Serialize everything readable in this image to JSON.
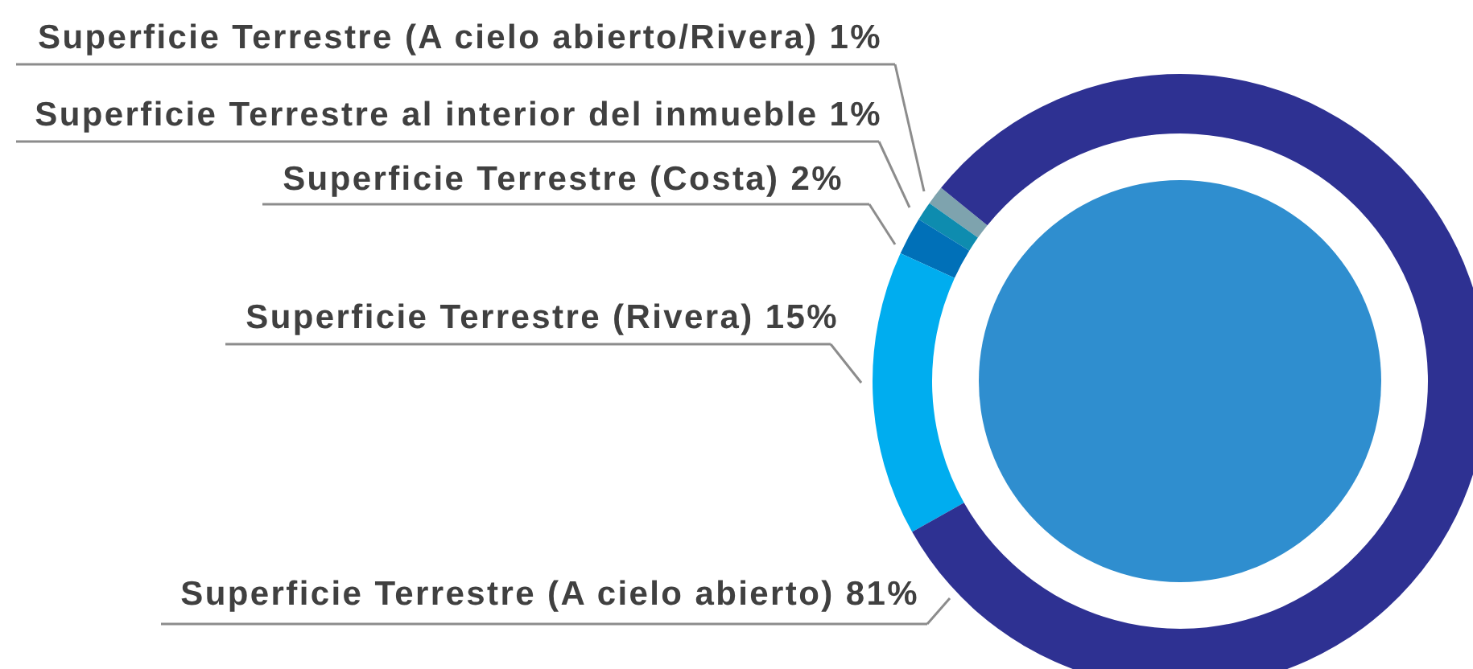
{
  "chart_data": {
    "type": "donut",
    "categories": [
      "Superficie Terrestre (A cielo abierto/Rivera)",
      "Superficie Terrestre al interior del inmueble",
      "Superficie Terrestre (Costa)",
      "Superficie Terrestre (Rivera)",
      "Superficie Terrestre (A cielo abierto)"
    ],
    "values": [
      1,
      1,
      2,
      15,
      81
    ],
    "value_labels": [
      "1%",
      "1%",
      "2%",
      "15%",
      "81%"
    ],
    "colors": [
      "#7ea3ae",
      "#0e8caf",
      "#0070b8",
      "#00adef",
      "#2e3192"
    ]
  }
}
